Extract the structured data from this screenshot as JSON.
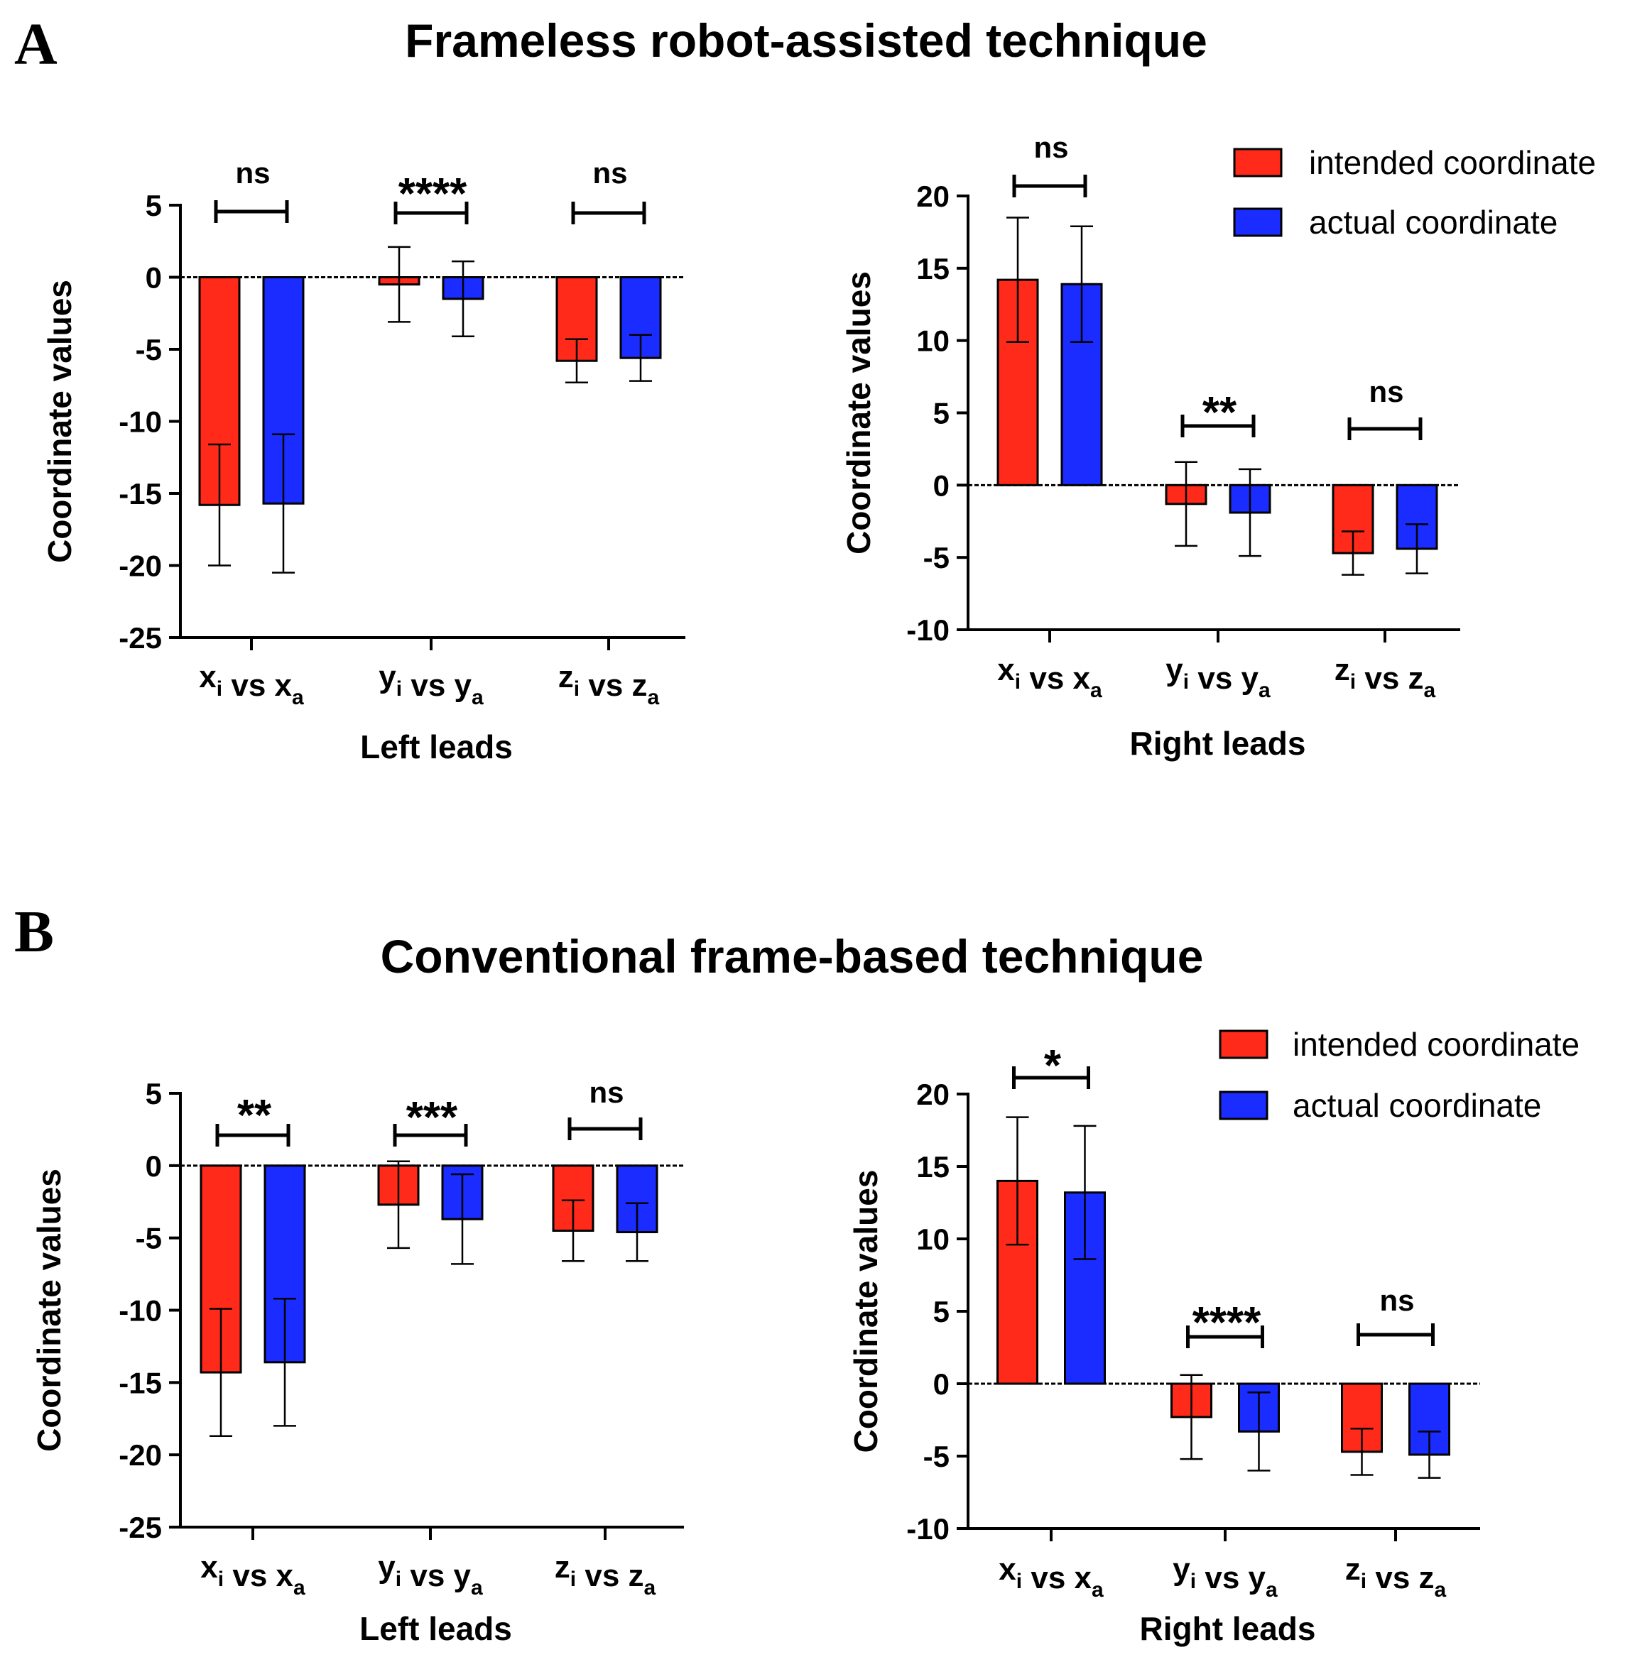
{
  "panels": [
    {
      "letter": "A",
      "title": "Frameless robot-assisted technique",
      "legend": {
        "entries": [
          {
            "label": "intended coordinate",
            "color": "#ff2a1a"
          },
          {
            "label": "actual coordinate",
            "color": "#1a2cff"
          }
        ]
      }
    },
    {
      "letter": "B",
      "title": "Conventional frame-based technique",
      "legend": {
        "entries": [
          {
            "label": "intended coordinate",
            "color": "#ff2a1a"
          },
          {
            "label": "actual coordinate",
            "color": "#1a2cff"
          }
        ]
      }
    }
  ],
  "chart_data": [
    {
      "type": "bar",
      "panel": "A",
      "title": "Frameless robot-assisted technique",
      "xlabel": "Left leads",
      "ylabel": "Coordinate values",
      "ylim": [
        -25,
        5
      ],
      "yticks": [
        5,
        0,
        -5,
        -10,
        -15,
        -20,
        -25
      ],
      "categories": [
        {
          "base": "x",
          "sub1": "i",
          "vs": " vs ",
          "base2": "x",
          "sub2": "a"
        },
        {
          "base": "y",
          "sub1": "i",
          "vs": " vs ",
          "base2": "y",
          "sub2": "a"
        },
        {
          "base": "z",
          "sub1": "i",
          "vs": " vs ",
          "base2": "z",
          "sub2": "a"
        }
      ],
      "series": [
        {
          "name": "intended coordinate",
          "color": "#ff2a1a",
          "values": [
            -15.8,
            -0.5,
            -5.8
          ],
          "errors": [
            4.2,
            2.6,
            1.5
          ]
        },
        {
          "name": "actual coordinate",
          "color": "#1a2cff",
          "values": [
            -15.7,
            -1.5,
            -5.6
          ],
          "errors": [
            4.8,
            2.6,
            1.6
          ]
        }
      ],
      "significance": [
        "ns",
        "****",
        "ns"
      ],
      "legend": false,
      "grid": false
    },
    {
      "type": "bar",
      "panel": "A",
      "title": "",
      "xlabel": "Right leads",
      "ylabel": "Coordinate values",
      "ylim": [
        -10,
        20
      ],
      "yticks": [
        20,
        15,
        10,
        5,
        0,
        -5,
        -10
      ],
      "categories": [
        {
          "base": "x",
          "sub1": "i",
          "vs": " vs ",
          "base2": "x",
          "sub2": "a"
        },
        {
          "base": "y",
          "sub1": "i",
          "vs": " vs ",
          "base2": "y",
          "sub2": "a"
        },
        {
          "base": "z",
          "sub1": "i",
          "vs": " vs ",
          "base2": "z",
          "sub2": "a"
        }
      ],
      "series": [
        {
          "name": "intended coordinate",
          "color": "#ff2a1a",
          "values": [
            14.2,
            -1.3,
            -4.7
          ],
          "errors": [
            4.3,
            2.9,
            1.5
          ]
        },
        {
          "name": "actual coordinate",
          "color": "#1a2cff",
          "values": [
            13.9,
            -1.9,
            -4.4
          ],
          "errors": [
            4.0,
            3.0,
            1.7
          ]
        }
      ],
      "significance": [
        "ns",
        "**",
        "ns"
      ],
      "legend": "top-right",
      "grid": false
    },
    {
      "type": "bar",
      "panel": "B",
      "title": "Conventional frame-based technique",
      "xlabel": "Left leads",
      "ylabel": "Coordinate values",
      "ylim": [
        -25,
        5
      ],
      "yticks": [
        5,
        0,
        -5,
        -10,
        -15,
        -20,
        -25
      ],
      "categories": [
        {
          "base": "x",
          "sub1": "i",
          "vs": " vs ",
          "base2": "x",
          "sub2": "a"
        },
        {
          "base": "y",
          "sub1": "i",
          "vs": " vs ",
          "base2": "y",
          "sub2": "a"
        },
        {
          "base": "z",
          "sub1": "i",
          "vs": " vs ",
          "base2": "z",
          "sub2": "a"
        }
      ],
      "series": [
        {
          "name": "intended coordinate",
          "color": "#ff2a1a",
          "values": [
            -14.3,
            -2.7,
            -4.5
          ],
          "errors": [
            4.4,
            3.0,
            2.1
          ]
        },
        {
          "name": "actual coordinate",
          "color": "#1a2cff",
          "values": [
            -13.6,
            -3.7,
            -4.6
          ],
          "errors": [
            4.4,
            3.1,
            2.0
          ]
        }
      ],
      "significance": [
        "**",
        "***",
        "ns"
      ],
      "legend": false,
      "grid": false
    },
    {
      "type": "bar",
      "panel": "B",
      "title": "",
      "xlabel": "Right leads",
      "ylabel": "Coordinate values",
      "ylim": [
        -10,
        20
      ],
      "yticks": [
        20,
        15,
        10,
        5,
        0,
        -5,
        -10
      ],
      "categories": [
        {
          "base": "x",
          "sub1": "i",
          "vs": " vs ",
          "base2": "x",
          "sub2": "a"
        },
        {
          "base": "y",
          "sub1": "i",
          "vs": " vs ",
          "base2": "y",
          "sub2": "a"
        },
        {
          "base": "z",
          "sub1": "i",
          "vs": " vs ",
          "base2": "z",
          "sub2": "a"
        }
      ],
      "series": [
        {
          "name": "intended coordinate",
          "color": "#ff2a1a",
          "values": [
            14.0,
            -2.3,
            -4.7
          ],
          "errors": [
            4.4,
            2.9,
            1.6
          ]
        },
        {
          "name": "actual coordinate",
          "color": "#1a2cff",
          "values": [
            13.2,
            -3.3,
            -4.9
          ],
          "errors": [
            4.6,
            2.7,
            1.6
          ]
        }
      ],
      "significance": [
        "*",
        "****",
        "ns"
      ],
      "legend": "top-right",
      "grid": false
    }
  ]
}
